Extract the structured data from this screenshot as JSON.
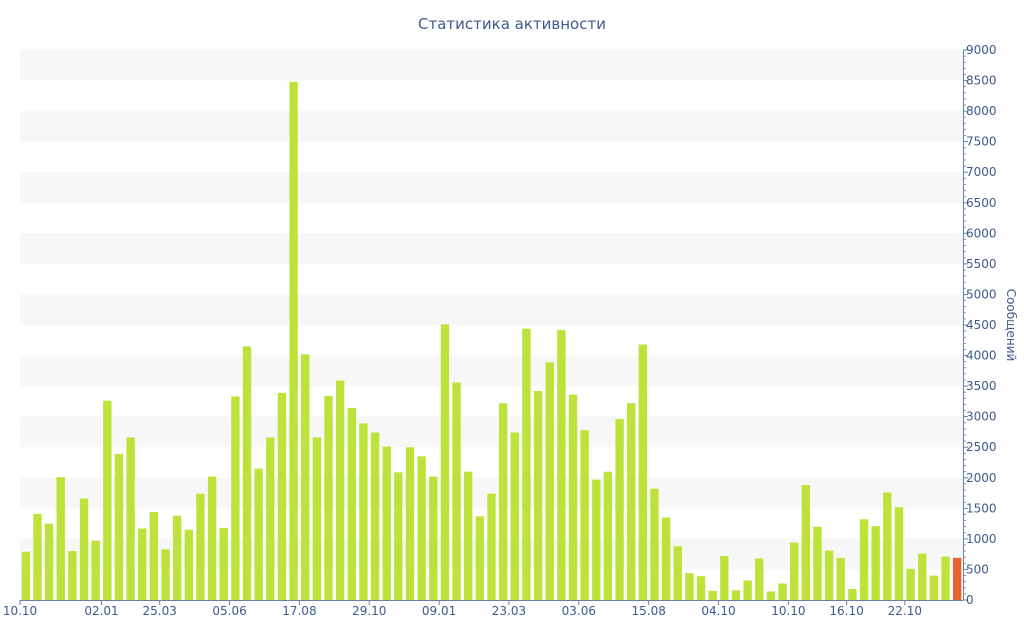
{
  "chart_data": {
    "type": "bar",
    "title": "Статистика активности",
    "ylabel": "Сообщений",
    "xlabel": "",
    "ylim": [
      0,
      9000
    ],
    "y_ticks": [
      0,
      500,
      1000,
      1500,
      2000,
      2500,
      3000,
      3500,
      4000,
      4500,
      5000,
      5500,
      6000,
      6500,
      7000,
      7500,
      8000,
      8500,
      9000
    ],
    "y_axis_side": "right",
    "grid": "alternating horizontal bands",
    "x_tick_labels": [
      "10.10",
      "02.01",
      "25.03",
      "05.06",
      "17.08",
      "29.10",
      "09.01",
      "23.03",
      "03.06",
      "15.08",
      "04.10",
      "10.10",
      "16.10",
      "22.10"
    ],
    "x_tick_indices": [
      0,
      7,
      12,
      18,
      24,
      30,
      36,
      42,
      48,
      54,
      60,
      66,
      71,
      76
    ],
    "values": [
      790,
      1410,
      1250,
      2010,
      800,
      1660,
      970,
      3260,
      2390,
      2660,
      1170,
      1440,
      830,
      1380,
      1150,
      1740,
      2020,
      1180,
      3330,
      4150,
      2150,
      2660,
      3390,
      8480,
      4020,
      2660,
      3340,
      3590,
      3140,
      2890,
      2740,
      2510,
      2090,
      2500,
      2350,
      2020,
      4510,
      3560,
      2100,
      1370,
      1740,
      3220,
      2740,
      4440,
      3420,
      3890,
      4420,
      3360,
      2780,
      1970,
      2100,
      2960,
      3220,
      4180,
      1820,
      1350,
      880,
      440,
      390,
      150,
      720,
      160,
      320,
      680,
      140,
      270,
      940,
      1880,
      1200,
      810,
      690,
      180,
      1320,
      1210,
      1760,
      1520,
      510,
      760,
      400,
      710,
      690
    ],
    "highlight_index": 80,
    "colors": {
      "bar": "#bde33a",
      "highlight": "#e8622d",
      "axis_text": "#3e5a8c",
      "band": "#f7f7f7",
      "axis": "#6a7fa6"
    }
  }
}
